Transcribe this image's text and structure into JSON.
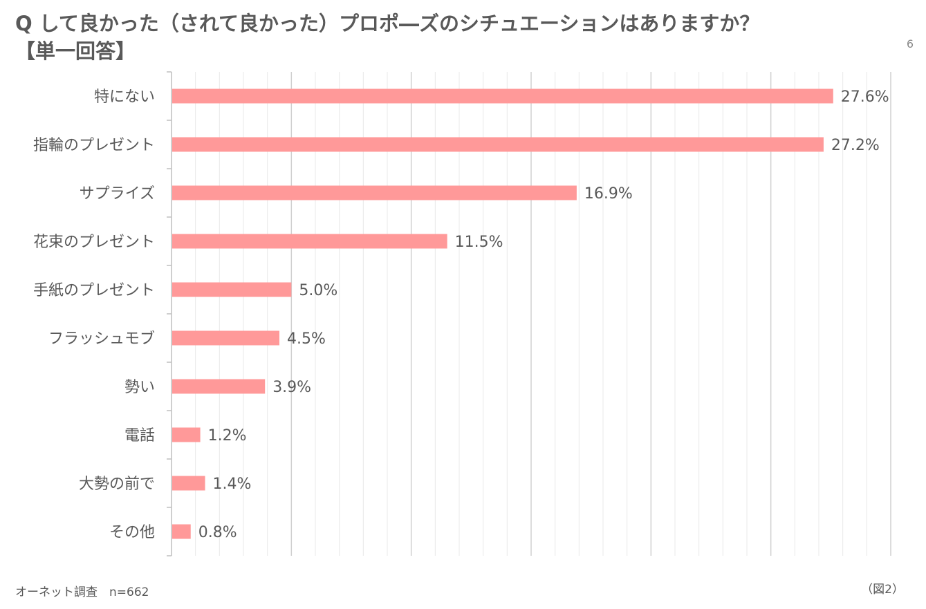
{
  "title": {
    "line1": "Q して良かった（されて良かった）プロポ―ズのシチュエーションはありますか？",
    "line2": "【単一回答】"
  },
  "corner_mark": "6",
  "footer": {
    "source": "オーネット調査　n=662",
    "figure": "（図2）"
  },
  "colors": {
    "bar": "#ff9999",
    "text": "#595959",
    "grid_major": "#d0d0d0",
    "grid_minor": "#e8e8e8"
  },
  "chart_data": {
    "type": "bar",
    "orientation": "horizontal",
    "categories": [
      "特にない",
      "指輪のプレゼント",
      "サプライズ",
      "花束のプレゼント",
      "手紙のプレゼント",
      "フラッシュモブ",
      "勢い",
      "電話",
      "大勢の前で",
      "その他"
    ],
    "values": [
      27.6,
      27.2,
      16.9,
      11.5,
      5.0,
      4.5,
      3.9,
      1.2,
      1.4,
      0.8
    ],
    "value_labels": [
      "27.6%",
      "27.2%",
      "16.9%",
      "11.5%",
      "5.0%",
      "4.5%",
      "3.9%",
      "1.2%",
      "1.4%",
      "0.8%"
    ],
    "xlim": [
      0,
      30
    ],
    "x_major_step": 5,
    "x_minor_step": 1,
    "grid": true,
    "xlabel": "",
    "ylabel": ""
  }
}
